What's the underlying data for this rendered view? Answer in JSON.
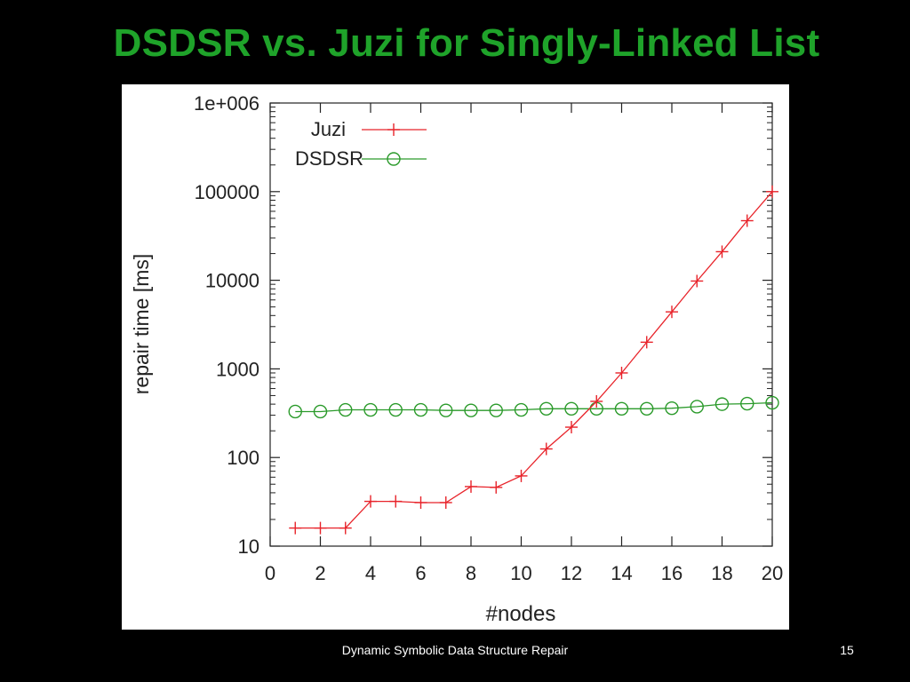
{
  "slide": {
    "title": "DSDSR vs. Juzi for Singly-Linked List",
    "footer": "Dynamic Symbolic Data Structure Repair",
    "page_number": "15"
  },
  "colors": {
    "title": "#1fa32a",
    "juzi": "#e8232a",
    "dsdsr": "#2a9a2a"
  },
  "chart_data": {
    "type": "line",
    "xlabel": "#nodes",
    "ylabel": "repair time [ms]",
    "yscale": "log",
    "xlim": [
      0,
      20
    ],
    "ylim": [
      10,
      1000000
    ],
    "xticks": [
      0,
      2,
      4,
      6,
      8,
      10,
      12,
      14,
      16,
      18,
      20
    ],
    "xtick_labels": [
      "0",
      "2",
      "4",
      "6",
      "8",
      "10",
      "12",
      "14",
      "16",
      "18",
      "20"
    ],
    "yticks": [
      10,
      100,
      1000,
      10000,
      100000,
      1000000
    ],
    "ytick_labels": [
      "10",
      "100",
      "1000",
      "10000",
      "100000",
      "1e+006"
    ],
    "legend_position": "top-left",
    "series": [
      {
        "name": "Juzi",
        "marker": "plus",
        "x": [
          1,
          2,
          3,
          4,
          5,
          6,
          7,
          8,
          9,
          10,
          11,
          12,
          13,
          14,
          15,
          16,
          17,
          18,
          19,
          20
        ],
        "values": [
          16,
          16,
          16,
          32,
          32,
          31,
          31,
          47,
          46,
          62,
          125,
          220,
          430,
          900,
          2000,
          4400,
          9800,
          21000,
          47000,
          100000
        ]
      },
      {
        "name": "DSDSR",
        "marker": "circle",
        "x": [
          1,
          2,
          3,
          4,
          5,
          6,
          7,
          8,
          9,
          10,
          11,
          12,
          13,
          14,
          15,
          16,
          17,
          18,
          19,
          20
        ],
        "values": [
          330,
          330,
          345,
          345,
          345,
          345,
          340,
          340,
          340,
          345,
          355,
          355,
          355,
          355,
          355,
          360,
          375,
          400,
          405,
          415
        ]
      }
    ]
  }
}
